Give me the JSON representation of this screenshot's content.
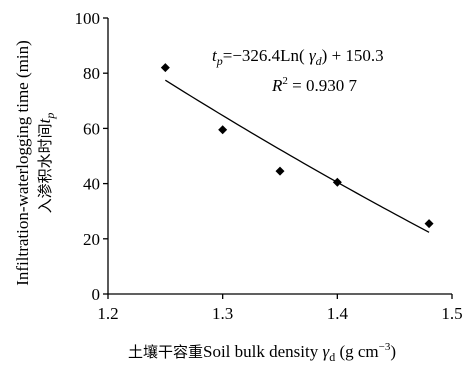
{
  "chart_data": {
    "type": "scatter",
    "x": [
      1.25,
      1.3,
      1.35,
      1.4,
      1.48
    ],
    "y": [
      82,
      59.5,
      44.5,
      40.5,
      25.5
    ],
    "xlim": [
      1.2,
      1.5
    ],
    "ylim": [
      0,
      100
    ],
    "xticks": [
      1.2,
      1.3,
      1.4,
      1.5
    ],
    "xtick_labels": [
      "1.2",
      "1.3",
      "1.4",
      "1.5"
    ],
    "yticks": [
      0,
      20,
      40,
      60,
      80,
      100
    ],
    "ytick_labels": [
      "0",
      "20",
      "40",
      "60",
      "80",
      "100"
    ],
    "xlabel": {
      "zh": "土壤干容重",
      "en": "Soil bulk density ",
      "sym": "γ",
      "sub": "d",
      "unit_open": " (g cm",
      "unit_exp": "−3",
      "unit_close": ")"
    },
    "ylabel": {
      "line1": "Infiltration-waterlogging time (min)",
      "line2_zh": "入渗积水时间",
      "line2_sym": "t",
      "line2_sub": "p"
    },
    "trendline": {
      "model": "logarithmic",
      "a": -326.4,
      "b": 150.3,
      "x_range": [
        1.25,
        1.48
      ]
    },
    "annotation": {
      "lhs_sym": "t",
      "lhs_sub": "p",
      "eq_mid": "=−326.4Ln( ",
      "eq_sym": "γ",
      "eq_sub": "d",
      "eq_end": ") + 150.3",
      "r2_sym": "R",
      "r2_sup": "2",
      "r2_val": " = 0.930 7"
    },
    "grid": false,
    "legend": "none",
    "marker_color": "#000000",
    "line_color": "#000000"
  }
}
